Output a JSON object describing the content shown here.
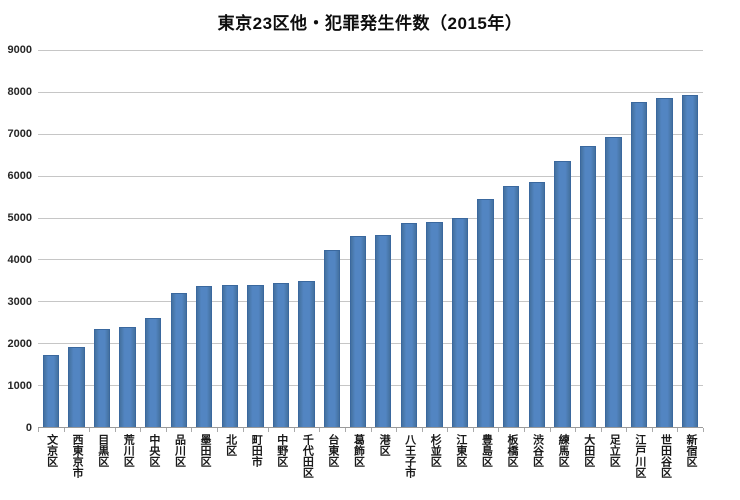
{
  "title": "東京23区他・犯罪発生件数（2015年）",
  "chart_data": {
    "type": "bar",
    "title": "東京23区他・犯罪発生件数（2015年）",
    "categories": [
      "文京区",
      "西東京市",
      "目黒区",
      "荒川区",
      "中央区",
      "品川区",
      "墨田区",
      "北区",
      "町田市",
      "中野区",
      "千代田区",
      "台東区",
      "葛飾区",
      "港区",
      "八王子市",
      "杉並区",
      "江東区",
      "豊島区",
      "板橋区",
      "渋谷区",
      "練馬区",
      "大田区",
      "足立区",
      "江戸川区",
      "世田谷区",
      "新宿区"
    ],
    "values": [
      1720,
      1910,
      2330,
      2390,
      2600,
      3210,
      3370,
      3380,
      3390,
      3440,
      3480,
      4230,
      4550,
      4590,
      4870,
      4890,
      4980,
      5440,
      5750,
      5850,
      6360,
      6700,
      6930,
      7770,
      7850,
      7930
    ],
    "xlabel": "",
    "ylabel": "",
    "ylim": [
      0,
      9000
    ],
    "yticks": [
      0,
      1000,
      2000,
      3000,
      4000,
      5000,
      6000,
      7000,
      8000,
      9000
    ],
    "grid": true,
    "legend_position": "none",
    "bar_color": "#4f81bd",
    "bar_border_color": "#3a689e",
    "gridline_color": "#c6c6c6",
    "axis_line_color": "#9a9a9a",
    "background_color": "#ffffff",
    "text_color": "#1a1a1a"
  }
}
